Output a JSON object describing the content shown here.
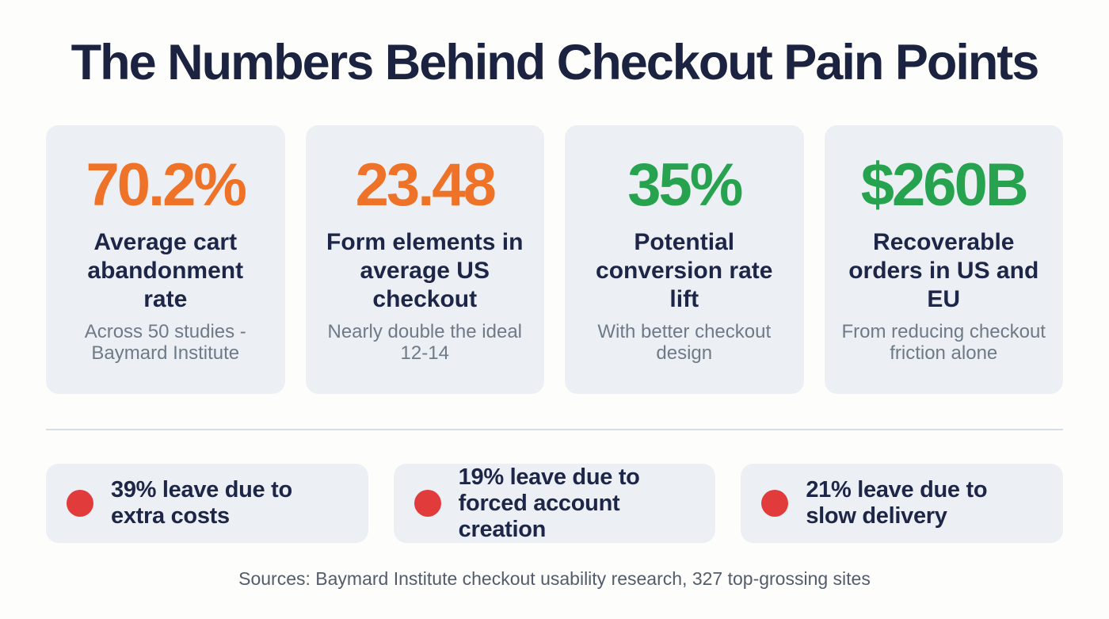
{
  "page": {
    "title": "The Numbers Behind Checkout Pain Points",
    "footer": "Sources: Baymard Institute checkout usability research, 327 top-grossing sites"
  },
  "colors": {
    "accent_orange": "#ee7227",
    "accent_green": "#27a34f",
    "accent_red": "#e23b3b",
    "title_navy": "#1b2340",
    "label_navy": "#1e2647",
    "card_background": "#ecf0f5",
    "muted_gray": "#6f7a87",
    "divider_gray": "#d9dee6"
  },
  "stat_cards": [
    {
      "value": "70.2%",
      "value_color": "#ee7227",
      "label": "Average cart abandonment rate",
      "sublabel": "Across 50 studies - Baymard Institute"
    },
    {
      "value": "23.48",
      "value_color": "#ee7227",
      "label": "Form elements in average US checkout",
      "sublabel": "Nearly double the ideal 12-14"
    },
    {
      "value": "35%",
      "value_color": "#27a34f",
      "label": "Potential conversion rate lift",
      "sublabel": "With better checkout design"
    },
    {
      "value": "$260B",
      "value_color": "#27a34f",
      "label": "Recoverable orders in US and EU",
      "sublabel": "From reducing checkout friction alone"
    }
  ],
  "reasons": [
    {
      "icon": "red-dot",
      "text": "39% leave due to extra costs"
    },
    {
      "icon": "red-dot",
      "text": "19% leave due to forced account creation"
    },
    {
      "icon": "red-dot",
      "text": "21% leave due to slow delivery"
    }
  ]
}
